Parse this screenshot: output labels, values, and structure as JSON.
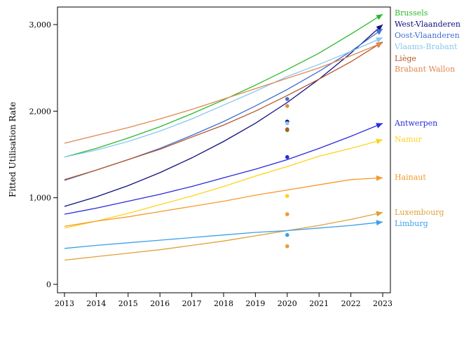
{
  "chart_data": {
    "type": "line",
    "title": "",
    "xlabel": "",
    "ylabel": "Fitted Utilisation Rate",
    "x": [
      2013,
      2014,
      2015,
      2016,
      2017,
      2018,
      2019,
      2020,
      2021,
      2022,
      2023
    ],
    "x_ticks": [
      "2013",
      "2014",
      "2015",
      "2016",
      "2017",
      "2018",
      "2019",
      "2020",
      "2021",
      "2022",
      "2023"
    ],
    "y_ticks": [
      0,
      1000,
      2000,
      3000
    ],
    "y_tick_labels": [
      "0",
      "1,000",
      "2,000",
      "3,000"
    ],
    "xlim": [
      2013,
      2023
    ],
    "ylim": [
      0,
      3200
    ],
    "grid": false,
    "legend": "direct labels at line ends, right",
    "series": [
      {
        "name": "Brussels",
        "color": "#2db82d",
        "values": [
          1470,
          1570,
          1690,
          1820,
          1970,
          2130,
          2300,
          2480,
          2670,
          2890,
          3120
        ],
        "point_2020": 1780
      },
      {
        "name": "West-Vlaanderen",
        "color": "#101080",
        "values": [
          900,
          1010,
          1140,
          1290,
          1460,
          1650,
          1860,
          2100,
          2370,
          2670,
          3000
        ],
        "point_2020": 1880
      },
      {
        "name": "Oost-Vlaanderen",
        "color": "#3f6fd0",
        "values": [
          1200,
          1320,
          1440,
          1570,
          1720,
          1880,
          2060,
          2250,
          2460,
          2690,
          2950
        ],
        "point_2020": 2140
      },
      {
        "name": "Vlaams-Brabant",
        "color": "#87c8f0",
        "values": [
          1470,
          1550,
          1650,
          1770,
          1910,
          2070,
          2230,
          2400,
          2540,
          2690,
          2850
        ],
        "point_2020": 1860
      },
      {
        "name": "Liège",
        "color": "#b5562a",
        "values": [
          1210,
          1320,
          1440,
          1560,
          1700,
          1840,
          2000,
          2180,
          2370,
          2570,
          2800
        ],
        "point_2020": 1790
      },
      {
        "name": "Brabant Wallon",
        "color": "#e08850",
        "values": [
          1630,
          1720,
          1810,
          1910,
          2020,
          2140,
          2260,
          2380,
          2500,
          2640,
          2790
        ],
        "point_2020": 2060
      },
      {
        "name": "Antwerpen",
        "color": "#2a2ae0",
        "values": [
          810,
          880,
          960,
          1040,
          1130,
          1230,
          1330,
          1440,
          1570,
          1710,
          1860
        ],
        "point_2020": 1470
      },
      {
        "name": "Namur",
        "color": "#ffd21a",
        "values": [
          650,
          730,
          820,
          920,
          1020,
          1130,
          1250,
          1360,
          1480,
          1570,
          1670
        ],
        "point_2020": 1020
      },
      {
        "name": "Hainaut",
        "color": "#f59a2a",
        "values": [
          670,
          730,
          780,
          840,
          900,
          960,
          1030,
          1090,
          1150,
          1210,
          1230
        ],
        "point_2020": 810
      },
      {
        "name": "Luxembourg",
        "color": "#e0a13a",
        "values": [
          280,
          320,
          360,
          400,
          450,
          500,
          560,
          620,
          680,
          750,
          830
        ],
        "point_2020": 440
      },
      {
        "name": "Limburg",
        "color": "#3aa0e8",
        "values": [
          415,
          450,
          480,
          510,
          540,
          570,
          600,
          620,
          650,
          680,
          720
        ],
        "point_2020": 570
      }
    ],
    "labels": [
      {
        "text": "Brussels",
        "color": "#2db82d"
      },
      {
        "text": "West-Vlaanderen",
        "color": "#101080"
      },
      {
        "text": "Oost-Vlaanderen",
        "color": "#3f6fd0"
      },
      {
        "text": "Vlaams-Brabant",
        "color": "#87c8f0"
      },
      {
        "text": "Liège",
        "color": "#b5562a"
      },
      {
        "text": "Brabant Wallon",
        "color": "#e08850"
      },
      {
        "text": "Antwerpen",
        "color": "#2a2ae0"
      },
      {
        "text": "Namur",
        "color": "#ffd21a"
      },
      {
        "text": "Hainaut",
        "color": "#f59a2a"
      },
      {
        "text": "Luxembourg",
        "color": "#e0a13a"
      },
      {
        "text": "Limburg",
        "color": "#3aa0e8"
      }
    ]
  }
}
